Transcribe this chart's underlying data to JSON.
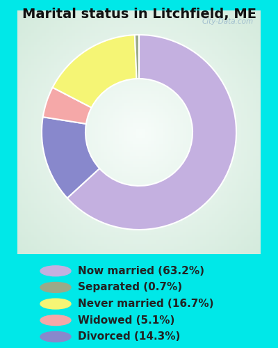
{
  "title": "Marital status in Litchfield, ME",
  "slices": [
    63.2,
    14.3,
    5.1,
    16.7,
    0.7
  ],
  "labels_order": [
    "Now married (63.2%)",
    "Separated (0.7%)",
    "Never married (16.7%)",
    "Widowed (5.1%)",
    "Divorced (14.3%)"
  ],
  "colors_order": [
    "#c4b0e0",
    "#9aaa88",
    "#f5f575",
    "#f5a8a8",
    "#8888cc"
  ],
  "pie_colors": [
    "#c4b0e0",
    "#8888cc",
    "#f5a8a8",
    "#f5f575",
    "#9aaa88"
  ],
  "background_color": "#00e8e8",
  "chart_bg_color": "#d8eedc",
  "title_fontsize": 14,
  "legend_fontsize": 11,
  "watermark": "City-Data.com",
  "donut_width": 0.45
}
